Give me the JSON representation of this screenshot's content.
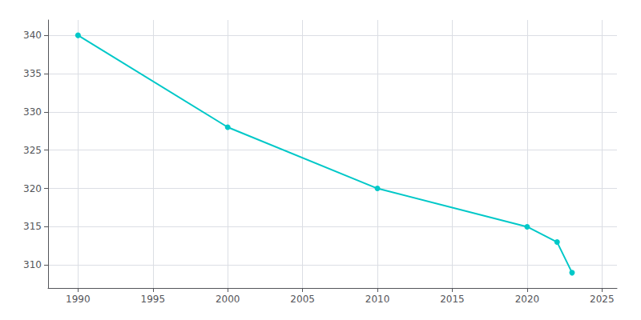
{
  "chart_data": {
    "type": "line",
    "x": [
      1990,
      2000,
      2010,
      2020,
      2022,
      2023
    ],
    "values": [
      340,
      328,
      320,
      315,
      313,
      309
    ],
    "color": "#00C8C8",
    "marker": "circle",
    "xlim": [
      1988,
      2026
    ],
    "xticks": [
      1990,
      1995,
      2000,
      2005,
      2010,
      2015,
      2020,
      2025
    ],
    "ylim": [
      307,
      342
    ],
    "yticks": [
      310,
      315,
      320,
      325,
      330,
      335,
      340
    ],
    "grid": true
  }
}
